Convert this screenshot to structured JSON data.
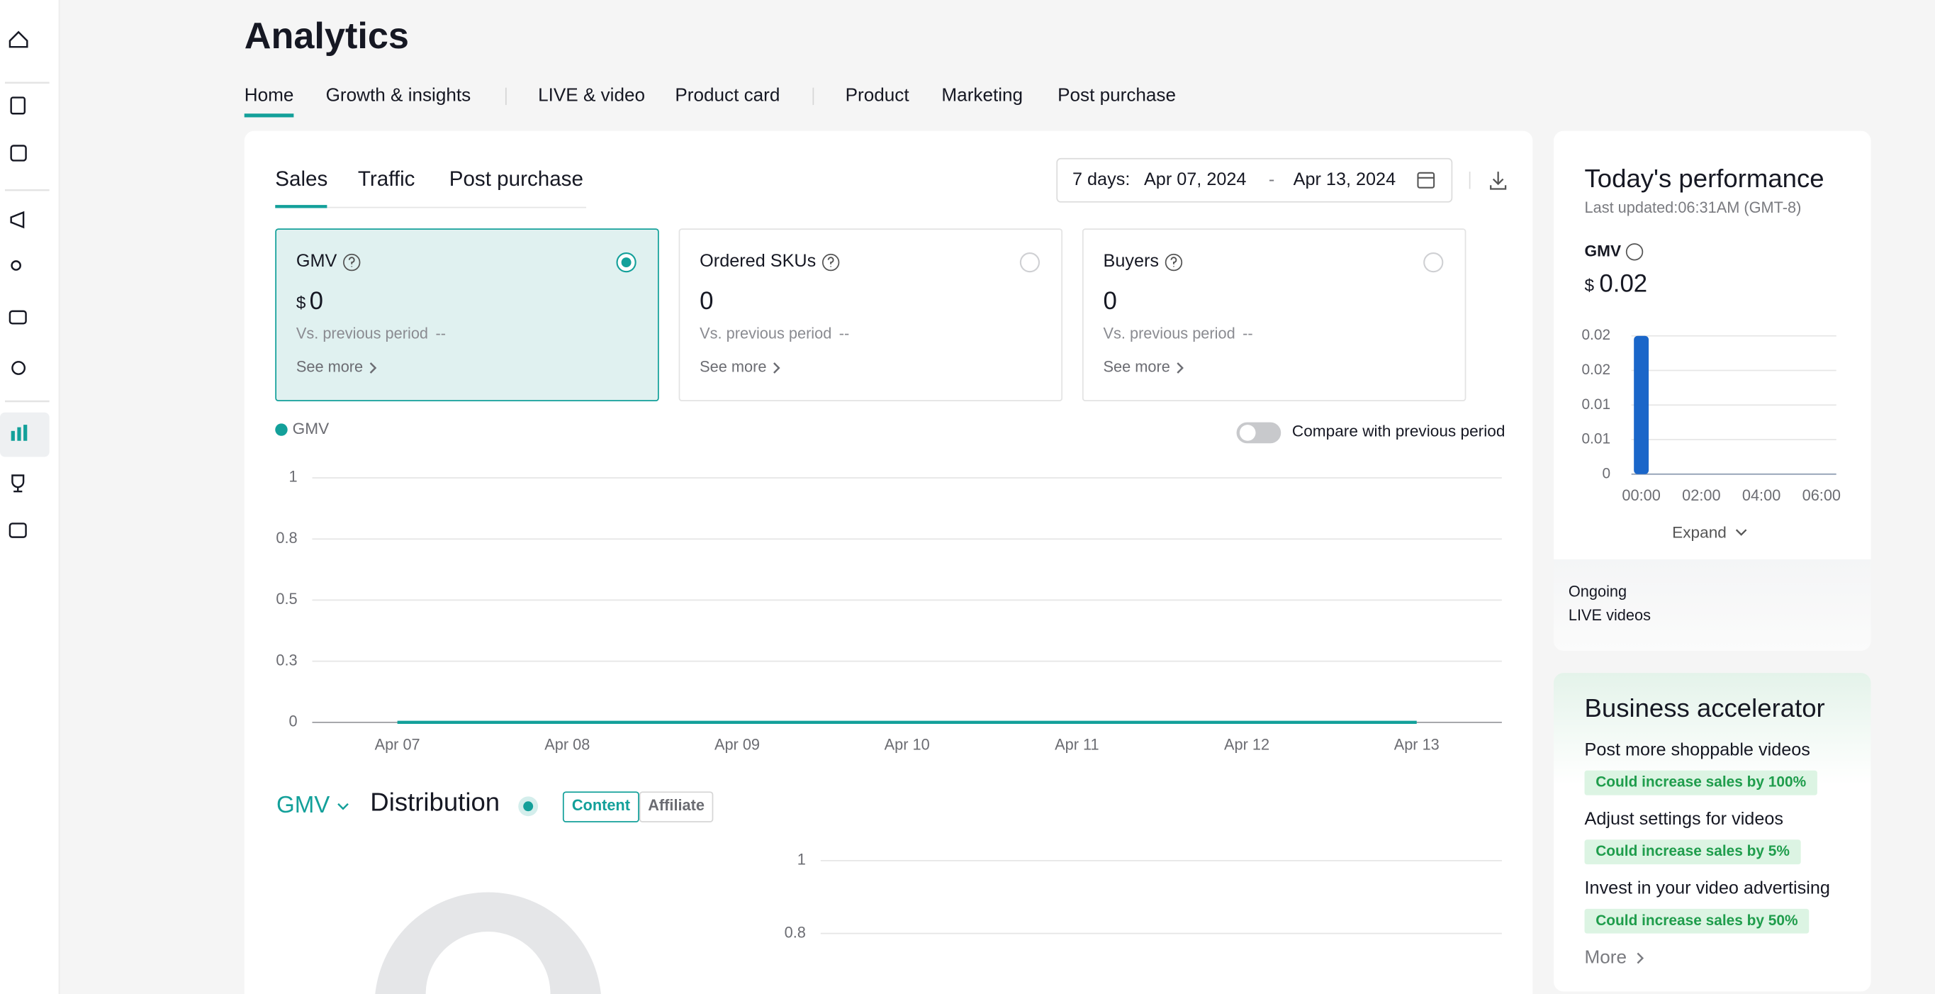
{
  "header": {
    "title": "Analytics"
  },
  "nav": {
    "tabs": [
      "Home",
      "Growth & insights",
      "LIVE & video",
      "Product card",
      "Product",
      "Marketing",
      "Post purchase"
    ]
  },
  "sales_panel": {
    "tabs": [
      "Sales",
      "Traffic",
      "Post purchase"
    ],
    "date_range": {
      "label": "7 days:",
      "start": "Apr 07, 2024",
      "separator": "-",
      "end": "Apr 13, 2024"
    },
    "metrics": [
      {
        "name": "GMV",
        "currency": "$",
        "value": 0,
        "comparison": "Vs. previous period",
        "change": "--",
        "link": "See more"
      },
      {
        "name": "Ordered SKUs",
        "value": 0,
        "comparison": "Vs. previous period",
        "change": "--",
        "link": "See more"
      },
      {
        "name": "Buyers",
        "value": 0,
        "comparison": "Vs. previous period",
        "change": "--",
        "link": "See more"
      }
    ],
    "compare_toggle": "Compare with previous period"
  },
  "distribution": {
    "metric": "GMV",
    "title": "Distribution",
    "toggles": [
      "Content",
      "Affiliate"
    ]
  },
  "today": {
    "title": "Today's performance",
    "updated": "Last updated:06:31AM (GMT-8)",
    "metric": "GMV",
    "currency": "$",
    "value": 0.02,
    "expand": "Expand",
    "live": [
      "Ongoing",
      "LIVE videos"
    ]
  },
  "accelerator": {
    "title": "Business accelerator",
    "items": [
      {
        "text": "Post more shoppable videos",
        "badge": "Could increase sales by 100%"
      },
      {
        "text": "Adjust settings for videos",
        "badge": "Could increase sales by 5%"
      },
      {
        "text": "Invest in your video advertising",
        "badge": "Could increase sales by 50%"
      }
    ],
    "more": "More"
  },
  "chart_data": [
    {
      "type": "line",
      "x": [
        "Apr 07",
        "Apr 08",
        "Apr 09",
        "Apr 10",
        "Apr 11",
        "Apr 12",
        "Apr 13"
      ],
      "series": [
        {
          "name": "GMV",
          "color": "#13a09a",
          "values": [
            0,
            0,
            0,
            0,
            0,
            0,
            0
          ]
        }
      ],
      "ylim": [
        0,
        1
      ],
      "yticks": [
        0,
        {
          "value": 0.25,
          "label": "0.3"
        },
        0.5,
        {
          "value": 0.75,
          "label": "0.8"
        },
        1
      ],
      "grid": true
    },
    {
      "type": "bar",
      "categories": [
        "00:00",
        null,
        "02:00",
        null,
        "04:00",
        null,
        "06:00"
      ],
      "values": [
        0.02,
        0,
        0,
        0,
        0,
        0,
        0
      ],
      "color": "#1a66c9",
      "ylim": [
        0,
        0.02
      ],
      "yticks": [
        0,
        {
          "value": 0.005,
          "label": "0.01"
        },
        0.01,
        {
          "value": 0.015,
          "label": "0.02"
        },
        0.02
      ],
      "grid": true
    },
    {
      "type": "bar",
      "ylim": [
        0,
        1
      ],
      "yticks": [
        {
          "value": 0.75,
          "label": "0.8"
        },
        1
      ],
      "grid": true
    }
  ]
}
